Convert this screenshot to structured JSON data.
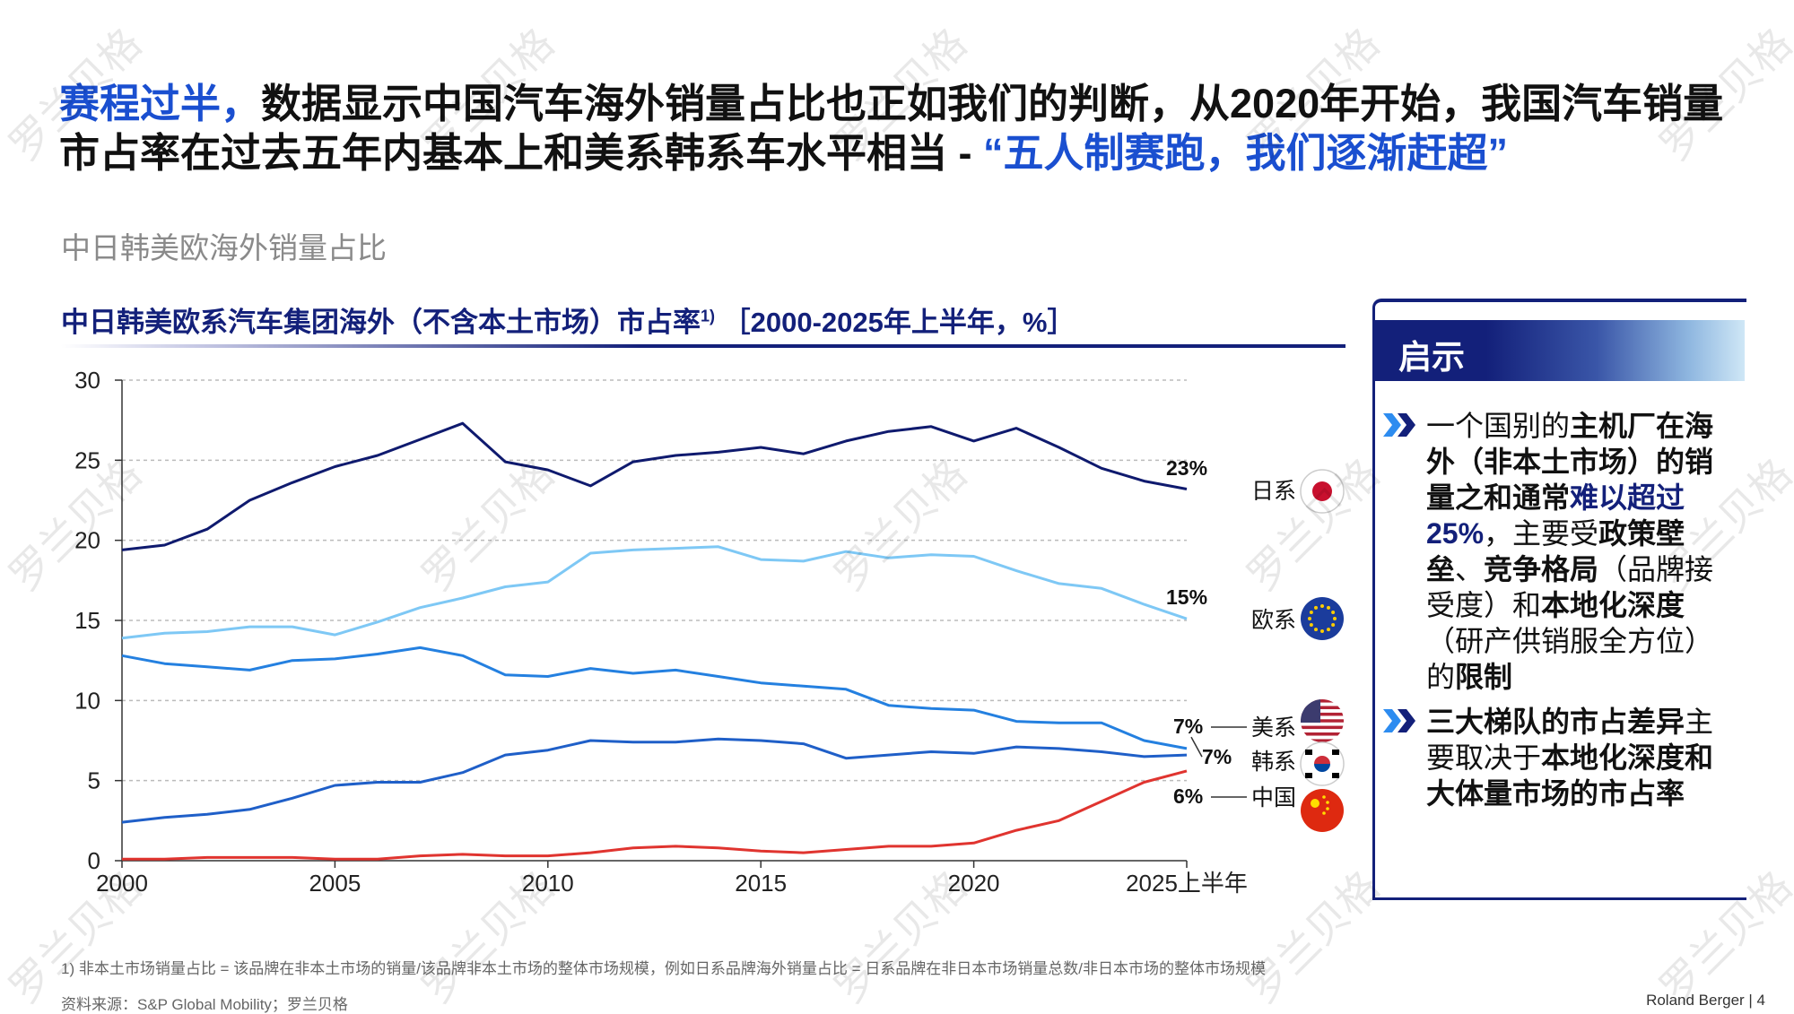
{
  "headline": {
    "part1_blue": "赛程过半，",
    "part2": "数据显示中国汽车海外销量占比也正如我们的判断，从2020年开始，我国汽车销量市占率在过去五年内基本上和美系韩系车水平相当 - ",
    "part3_blue": "“五人制赛跑，我们逐渐赶超”"
  },
  "subtitle": "中日韩美欧海外销量占比",
  "chart_title": {
    "main": "中日韩美欧系汽车集团海外（不含本土市场）市占率",
    "sup": "1)",
    "range": "［2000-2025年上半年，%］"
  },
  "chart_data": {
    "type": "line",
    "title": "中日韩美欧系汽车集团海外（不含本土市场）市占率1) ［2000-2025年上半年，%］",
    "x": [
      2000,
      2001,
      2002,
      2003,
      2004,
      2005,
      2006,
      2007,
      2008,
      2009,
      2010,
      2011,
      2012,
      2013,
      2014,
      2015,
      2016,
      2017,
      2018,
      2019,
      2020,
      2021,
      2022,
      2023,
      2024,
      2025
    ],
    "x_tick_labels": [
      "2000",
      "2005",
      "2010",
      "2015",
      "2020",
      "2025上半年"
    ],
    "y_tick_labels": [
      "0",
      "5",
      "10",
      "15",
      "20",
      "25",
      "30"
    ],
    "ylim": [
      0,
      30
    ],
    "grid": "dashed horizontal",
    "series": [
      {
        "name": "日系",
        "color": "#0f1a6e",
        "end_label": "23%",
        "flag": "japan",
        "values": [
          19.4,
          19.7,
          20.7,
          22.5,
          23.6,
          24.6,
          25.3,
          26.3,
          27.3,
          24.9,
          24.4,
          23.4,
          24.9,
          25.3,
          25.5,
          25.8,
          25.4,
          26.2,
          26.8,
          27.1,
          26.2,
          27.0,
          25.8,
          24.5,
          23.7,
          23.2
        ]
      },
      {
        "name": "欧系",
        "color": "#7ec8f5",
        "end_label": "15%",
        "flag": "eu",
        "values": [
          13.9,
          14.2,
          14.3,
          14.6,
          14.6,
          14.1,
          14.9,
          15.8,
          16.4,
          17.1,
          17.4,
          19.2,
          19.4,
          19.5,
          19.6,
          18.8,
          18.7,
          19.3,
          18.9,
          19.1,
          19.0,
          18.1,
          17.3,
          17.0,
          16.0,
          15.1
        ]
      },
      {
        "name": "美系",
        "color": "#2480e0",
        "end_label": "7%",
        "flag": "usa",
        "values": [
          12.8,
          12.3,
          12.1,
          11.9,
          12.5,
          12.6,
          12.9,
          13.3,
          12.8,
          11.6,
          11.5,
          12.0,
          11.7,
          11.9,
          11.5,
          11.1,
          10.9,
          10.7,
          9.7,
          9.5,
          9.4,
          8.7,
          8.6,
          8.6,
          7.5,
          7.0
        ]
      },
      {
        "name": "韩系",
        "color": "#1f5fc8",
        "end_label": "7%",
        "flag": "korea",
        "values": [
          2.4,
          2.7,
          2.9,
          3.2,
          3.9,
          4.7,
          4.9,
          4.9,
          5.5,
          6.6,
          6.9,
          7.5,
          7.4,
          7.4,
          7.6,
          7.5,
          7.3,
          6.4,
          6.6,
          6.8,
          6.7,
          7.1,
          7.0,
          6.8,
          6.5,
          6.6
        ]
      },
      {
        "name": "中国",
        "color": "#e0342f",
        "end_label": "6%",
        "flag": "china",
        "values": [
          0.1,
          0.1,
          0.2,
          0.2,
          0.2,
          0.1,
          0.1,
          0.3,
          0.4,
          0.3,
          0.3,
          0.5,
          0.8,
          0.9,
          0.8,
          0.6,
          0.5,
          0.7,
          0.9,
          0.9,
          1.1,
          1.9,
          2.5,
          3.7,
          4.9,
          5.6
        ]
      }
    ]
  },
  "panel": {
    "title": "启示",
    "bullets": [
      {
        "segments": [
          [
            "一个国别的",
            ""
          ],
          [
            "主机厂在海外（非本土市场）的销量之和通常",
            "b"
          ],
          [
            "难以超过25%",
            "nb"
          ],
          [
            "，主要受",
            ""
          ],
          [
            "政策壁垒",
            "b"
          ],
          [
            "、",
            ""
          ],
          [
            "竞争格局",
            "b"
          ],
          [
            "（品牌接受度）和",
            ""
          ],
          [
            "本地化深度",
            "b"
          ],
          [
            "（研产供销服全方位）的",
            ""
          ],
          [
            "限制",
            "b"
          ]
        ]
      },
      {
        "segments": [
          [
            "三大梯队的市占差异",
            "b"
          ],
          [
            "主要取决于",
            ""
          ],
          [
            "本地化深度和大体量市场的市占率",
            "b"
          ]
        ]
      }
    ]
  },
  "footnote": "1) 非本土市场销量占比 = 该品牌在非本土市场的销量/该品牌非本土市场的整体市场规模，例如日系品牌海外销量占比 = 日系品牌在非日本市场销量总数/非日本市场的整体市场规模",
  "source": "资料来源：S&P Global Mobility；罗兰贝格",
  "brand": "Roland Berger  |  4",
  "watermark": "罗兰贝格"
}
